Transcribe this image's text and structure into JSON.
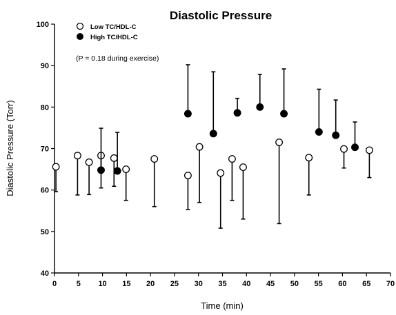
{
  "chart_data": {
    "type": "scatter",
    "title": "Diastolic Pressure",
    "xlabel": "Time (min)",
    "ylabel": "Diastolic Pressure (Torr)",
    "xlim": [
      0,
      70
    ],
    "ylim": [
      40,
      100
    ],
    "xticks": [
      "0",
      "5",
      "10",
      "15",
      "20",
      "25",
      "30",
      "35",
      "40",
      "45",
      "50",
      "55",
      "60",
      "65",
      "70"
    ],
    "yticks": [
      "40",
      "50",
      "60",
      "70",
      "80",
      "90",
      "100"
    ],
    "grid": false,
    "legend_position": "top-left",
    "annotation": "(P = 0.18 during exercise)",
    "series": [
      {
        "name": "Low TC/HDL-C",
        "marker": "open-circle",
        "error_direction": "down",
        "points": [
          {
            "x": 0.3,
            "y": 65.6,
            "err": 6
          },
          {
            "x": 4.8,
            "y": 68.3,
            "err": 9.5
          },
          {
            "x": 7.2,
            "y": 66.7,
            "err": 7.8
          },
          {
            "x": 9.7,
            "y": 68.3,
            "err": 7.8
          },
          {
            "x": 12.4,
            "y": 67.7,
            "err": 6.8
          },
          {
            "x": 14.9,
            "y": 65.0,
            "err": 7.5
          },
          {
            "x": 20.8,
            "y": 67.5,
            "err": 11.5
          },
          {
            "x": 27.8,
            "y": 63.5,
            "err": 8.2
          },
          {
            "x": 30.2,
            "y": 70.4,
            "err": 13.4
          },
          {
            "x": 34.6,
            "y": 64.1,
            "err": 13.3
          },
          {
            "x": 37.0,
            "y": 67.5,
            "err": 10.0
          },
          {
            "x": 39.3,
            "y": 65.5,
            "err": 12.5
          },
          {
            "x": 46.8,
            "y": 71.5,
            "err": 19.6
          },
          {
            "x": 53.0,
            "y": 67.8,
            "err": 9.0
          },
          {
            "x": 60.3,
            "y": 69.9,
            "err": 4.6
          },
          {
            "x": 65.6,
            "y": 69.6,
            "err": 6.6
          }
        ]
      },
      {
        "name": "High TC/HDL-C",
        "marker": "filled-circle",
        "error_direction": "up",
        "points": [
          {
            "x": 9.7,
            "y": 64.8,
            "err": 10.1
          },
          {
            "x": 13.1,
            "y": 64.6,
            "err": 9.3
          },
          {
            "x": 27.8,
            "y": 78.4,
            "err": 11.8
          },
          {
            "x": 33.1,
            "y": 73.6,
            "err": 14.9
          },
          {
            "x": 38.1,
            "y": 78.6,
            "err": 3.5
          },
          {
            "x": 42.8,
            "y": 80.0,
            "err": 7.9
          },
          {
            "x": 47.8,
            "y": 78.4,
            "err": 10.8
          },
          {
            "x": 55.1,
            "y": 74.0,
            "err": 10.3
          },
          {
            "x": 58.6,
            "y": 73.2,
            "err": 8.5
          },
          {
            "x": 62.6,
            "y": 70.3,
            "err": 6.1
          }
        ]
      }
    ]
  }
}
